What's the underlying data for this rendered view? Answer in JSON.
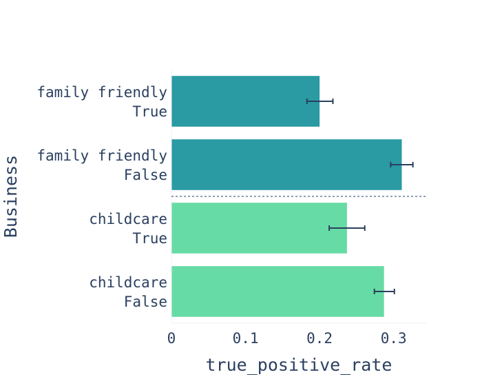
{
  "chart_data": {
    "type": "bar",
    "orientation": "horizontal",
    "xlabel": "true_positive_rate",
    "ylabel": "Business",
    "xlim": [
      0,
      0.344
    ],
    "xticks": [
      {
        "value": 0,
        "label": "0"
      },
      {
        "value": 0.1,
        "label": "0.1"
      },
      {
        "value": 0.2,
        "label": "0.2"
      },
      {
        "value": 0.3,
        "label": "0.3"
      }
    ],
    "grid": false,
    "bars": [
      {
        "line1": "family friendly",
        "line2": "True",
        "value": 0.2,
        "err_low": 0.183,
        "err_high": 0.218,
        "color": "#2a9aa3"
      },
      {
        "line1": "family friendly",
        "line2": "False",
        "value": 0.311,
        "err_low": 0.296,
        "err_high": 0.326,
        "color": "#2a9aa3"
      },
      {
        "line1": "childcare",
        "line2": "True",
        "value": 0.237,
        "err_low": 0.213,
        "err_high": 0.261,
        "color": "#67dba5"
      },
      {
        "line1": "childcare",
        "line2": "False",
        "value": 0.287,
        "err_low": 0.274,
        "err_high": 0.301,
        "color": "#67dba5"
      }
    ],
    "group_separator": {
      "after_index": 1,
      "style": "dotted",
      "color": "#6b7c99"
    },
    "error_bar_color": "#2a3f5f",
    "axis_line_color": "#ebf0f8"
  }
}
